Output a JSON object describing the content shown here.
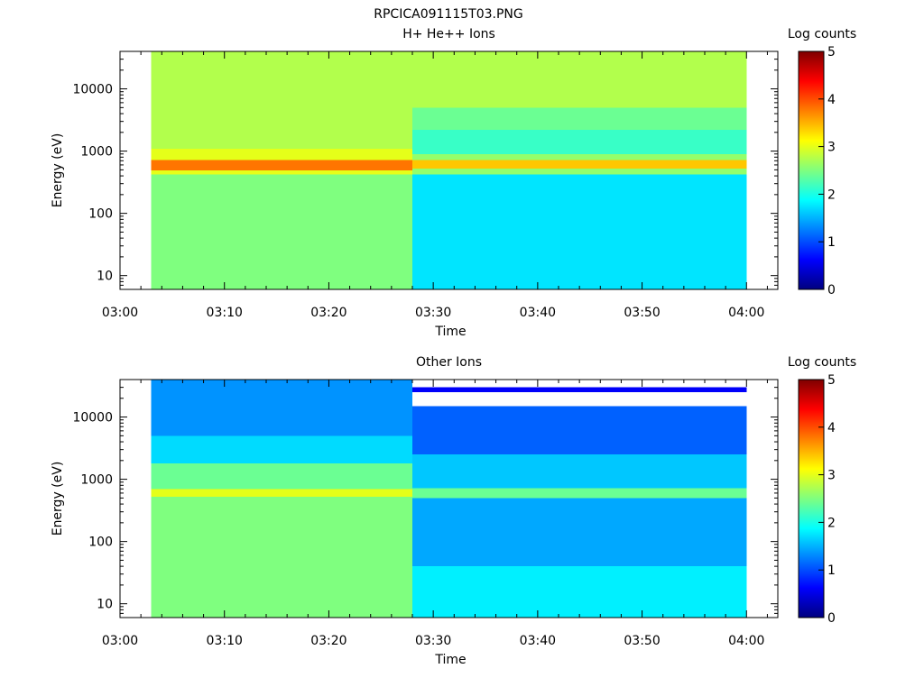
{
  "figure_title": "RPCICA091115T03.PNG",
  "colors": {
    "background": "#ffffff",
    "axis": "#000000",
    "colormap": [
      "#00007f",
      "#0000ff",
      "#007fff",
      "#00ffff",
      "#7fff7f",
      "#ffff00",
      "#ff7f00",
      "#ff0000",
      "#7f0000"
    ]
  },
  "chart_data": [
    {
      "type": "heatmap",
      "title": "H+ He++ Ions",
      "xlabel": "Time",
      "ylabel": "Energy (eV)",
      "y_scale": "log",
      "xlim": [
        "03:00",
        "04:03"
      ],
      "ylim": [
        6,
        40000
      ],
      "x_ticks": [
        "03:00",
        "03:10",
        "03:20",
        "03:30",
        "03:40",
        "03:50",
        "04:00"
      ],
      "y_ticks": [
        {
          "value": 10,
          "label": "10"
        },
        {
          "value": 100,
          "label": "100"
        },
        {
          "value": 1000,
          "label": "1000"
        },
        {
          "value": 10000,
          "label": "10000"
        }
      ],
      "data_time_range": [
        "03:03",
        "04:00"
      ],
      "colorbar": {
        "label": "Log counts",
        "range": [
          0,
          5
        ],
        "ticks": [
          "0",
          "1",
          "2",
          "3",
          "4",
          "5"
        ]
      },
      "segments": [
        {
          "time_range": [
            "03:03",
            "03:28"
          ],
          "energy_bands": [
            {
              "from": 6,
              "to": 420,
              "log_counts": 2.5
            },
            {
              "from": 420,
              "to": 490,
              "log_counts": 3.0
            },
            {
              "from": 490,
              "to": 720,
              "log_counts": 3.8
            },
            {
              "from": 720,
              "to": 1100,
              "log_counts": 3.0
            },
            {
              "from": 1100,
              "to": 40000,
              "log_counts": 2.75
            }
          ]
        },
        {
          "time_range": [
            "03:28",
            "04:00"
          ],
          "energy_bands": [
            {
              "from": 6,
              "to": 420,
              "log_counts": 1.75
            },
            {
              "from": 420,
              "to": 520,
              "log_counts": 2.6
            },
            {
              "from": 520,
              "to": 720,
              "log_counts": 3.4
            },
            {
              "from": 720,
              "to": 900,
              "log_counts": 2.6
            },
            {
              "from": 900,
              "to": 2200,
              "log_counts": 2.15
            },
            {
              "from": 2200,
              "to": 5000,
              "log_counts": 2.4
            },
            {
              "from": 5000,
              "to": 40000,
              "log_counts": 2.75
            }
          ]
        }
      ]
    },
    {
      "type": "heatmap",
      "title": "Other Ions",
      "xlabel": "Time",
      "ylabel": "Energy (eV)",
      "y_scale": "log",
      "xlim": [
        "03:00",
        "04:03"
      ],
      "ylim": [
        6,
        40000
      ],
      "x_ticks": [
        "03:00",
        "03:10",
        "03:20",
        "03:30",
        "03:40",
        "03:50",
        "04:00"
      ],
      "y_ticks": [
        {
          "value": 10,
          "label": "10"
        },
        {
          "value": 100,
          "label": "100"
        },
        {
          "value": 1000,
          "label": "1000"
        },
        {
          "value": 10000,
          "label": "10000"
        }
      ],
      "data_time_range": [
        "03:03",
        "04:00"
      ],
      "colorbar": {
        "label": "Log counts",
        "range": [
          0,
          5
        ],
        "ticks": [
          "0",
          "1",
          "2",
          "3",
          "4",
          "5"
        ]
      },
      "segments": [
        {
          "time_range": [
            "03:03",
            "03:28"
          ],
          "energy_bands": [
            {
              "from": 6,
              "to": 520,
              "log_counts": 2.5
            },
            {
              "from": 520,
              "to": 700,
              "log_counts": 3.0
            },
            {
              "from": 700,
              "to": 1800,
              "log_counts": 2.4
            },
            {
              "from": 1800,
              "to": 5000,
              "log_counts": 1.7
            },
            {
              "from": 5000,
              "to": 40000,
              "log_counts": 1.35
            }
          ]
        },
        {
          "time_range": [
            "03:28",
            "04:00"
          ],
          "energy_bands": [
            {
              "from": 6,
              "to": 40,
              "log_counts": 1.8
            },
            {
              "from": 40,
              "to": 500,
              "log_counts": 1.45
            },
            {
              "from": 500,
              "to": 720,
              "log_counts": 2.4
            },
            {
              "from": 720,
              "to": 2500,
              "log_counts": 1.6
            },
            {
              "from": 2500,
              "to": 15000,
              "log_counts": 1.1
            },
            {
              "from": 15000,
              "to": 25000,
              "log_counts": null
            },
            {
              "from": 25000,
              "to": 30000,
              "log_counts": 0.6
            }
          ]
        }
      ]
    }
  ]
}
